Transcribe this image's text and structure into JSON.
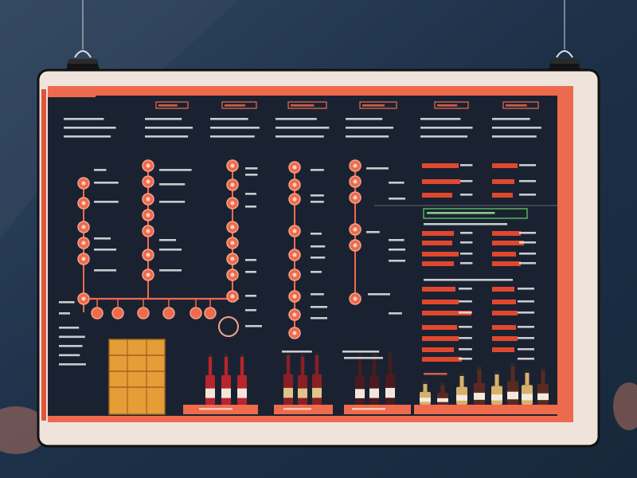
{
  "colors": {
    "background": "#1b2f45",
    "frame": "#eee4dc",
    "panel": "#1a2232",
    "accent": "#f06a4c",
    "accent_dark": "#e0482e",
    "highlight": "#3a6e3a",
    "text": "#e9e9e9",
    "wine": "#b8252c",
    "crate": "#e59d38"
  },
  "icons": {
    "clips": "binder-clip-icon",
    "nodes": "circle-node-icon",
    "bottles": "wine-bottle-icon",
    "crate": "wooden-crate-icon"
  }
}
